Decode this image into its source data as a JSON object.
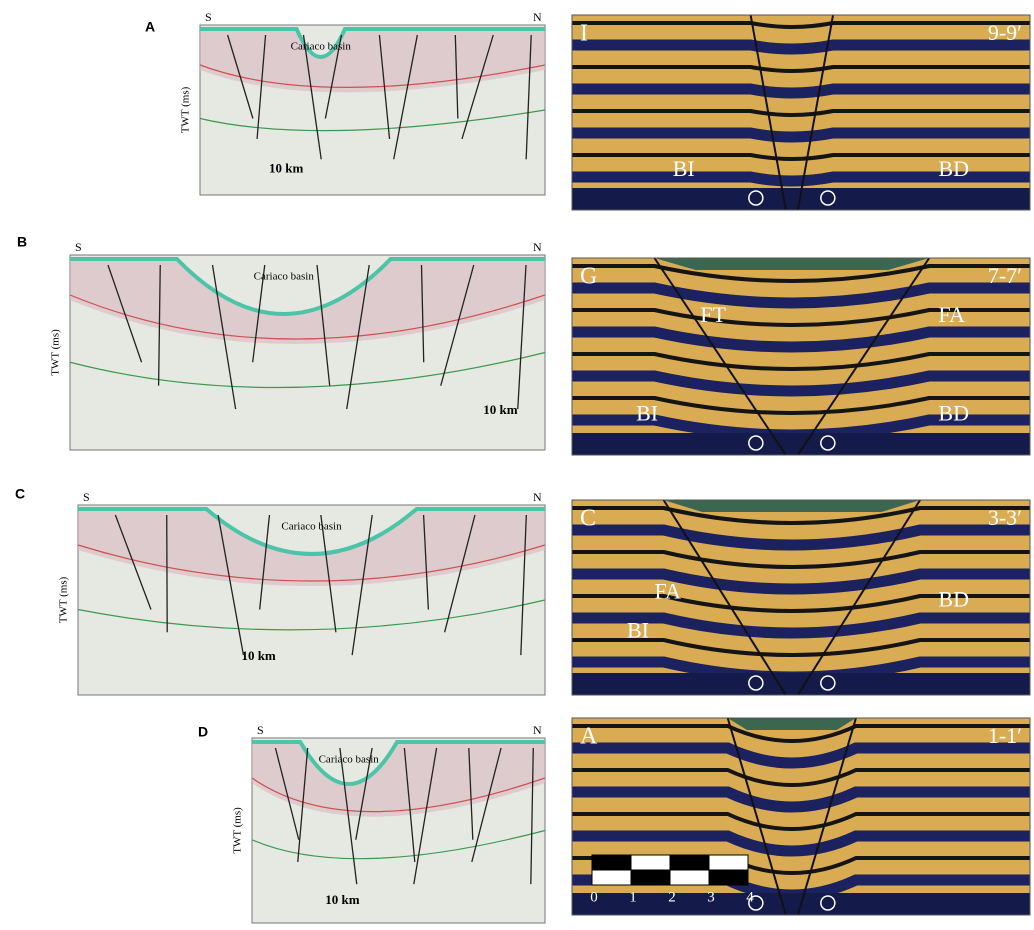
{
  "left_panels": [
    {
      "label": "A",
      "south": "S",
      "north": "N",
      "basin": "Cariaco basin",
      "axis_label": "TWT (ms)",
      "scale": "10 km"
    },
    {
      "label": "B",
      "south": "S",
      "north": "N",
      "basin": "Cariaco basin",
      "axis_label": "TWT (ms)",
      "scale": "10 km"
    },
    {
      "label": "C",
      "south": "S",
      "north": "N",
      "basin": "Cariaco basin",
      "axis_label": "TWT (ms)",
      "scale": "10 km"
    },
    {
      "label": "D",
      "south": "S",
      "north": "N",
      "basin": "Cariaco basin",
      "axis_label": "TWT (ms)",
      "scale": "10 km"
    }
  ],
  "right_panels": [
    {
      "label": "I",
      "section": "9-9′",
      "annotations": [
        "BI",
        "BD"
      ]
    },
    {
      "label": "G",
      "section": "7-7′",
      "annotations": [
        "FT",
        "FA",
        "BI",
        "BD"
      ]
    },
    {
      "label": "C",
      "section": "3-3′",
      "annotations": [
        "FA",
        "BD",
        "BI"
      ]
    },
    {
      "label": "A",
      "section": "1-1′"
    }
  ],
  "scale_bar": [
    "0",
    "1",
    "2",
    "3",
    "4"
  ]
}
